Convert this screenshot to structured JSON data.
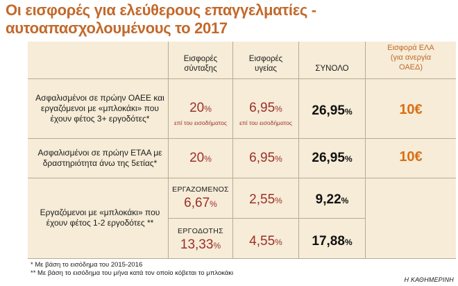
{
  "title": {
    "line1": "Οι εισφορές για ελεύθερους επαγγελματίες -",
    "line2": "αυτοαπασχολουμένους το 2017"
  },
  "headers": {
    "pension": [
      "Εισφορές",
      "σύνταξης"
    ],
    "health": [
      "Εισφορές",
      "υγείας"
    ],
    "total": "ΣΥΝΟΛΟ",
    "ela": [
      "Εισφορά ΕΛΑ",
      "(για ανεργία",
      "ΟΑΕΔ)"
    ]
  },
  "rows": [
    {
      "label": [
        "Ασφαλισμένοι σε πρώην ΟΑΕΕ και",
        "εργαζόμενοι με «μπλοκάκι» που",
        "έχουν φέτος 3+ εργοδότες*"
      ],
      "pension": {
        "num": "20",
        "unit": "%",
        "note": "επί του εισοδήματος"
      },
      "health": {
        "num": "6,95",
        "unit": "%",
        "note": "επί του εισοδήματος"
      },
      "total": {
        "num": "26,95",
        "unit": "%"
      },
      "ela": "10€"
    },
    {
      "label": [
        "Ασφαλισμένοι σε πρώην ΕΤΑΑ με",
        "δραστηριότητα άνω της 5ετίας*"
      ],
      "pension": {
        "num": "20",
        "unit": "%"
      },
      "health": {
        "num": "6,95",
        "unit": "%"
      },
      "total": {
        "num": "26,95",
        "unit": "%"
      },
      "ela": "10€"
    },
    {
      "label": [
        "Εργαζόμενοι με «μπλοκάκι» που",
        "έχουν φέτος 1-2 εργοδότες **"
      ],
      "sub": [
        {
          "who": "ΕΡΓΑΖΟΜΕΝΟΣ",
          "pension": {
            "num": "6,67",
            "unit": "%"
          },
          "health": {
            "num": "2,55",
            "unit": "%"
          },
          "total": {
            "num": "9,22",
            "unit": "%"
          }
        },
        {
          "who": "ΕΡΓΟΔΟΤΗΣ",
          "pension": {
            "num": "13,33",
            "unit": "%"
          },
          "health": {
            "num": "4,55",
            "unit": "%"
          },
          "total": {
            "num": "17,88",
            "unit": "%"
          }
        }
      ]
    }
  ],
  "footnotes": [
    "* Με βάση το εισόδημα του 2015-2016",
    "** Με βάση το εισόδημα του μήνα κατά τον οποίο κόβεται το μπλοκάκι"
  ],
  "source": "Η ΚΑΘΗΜΕΡΙΝΗ"
}
